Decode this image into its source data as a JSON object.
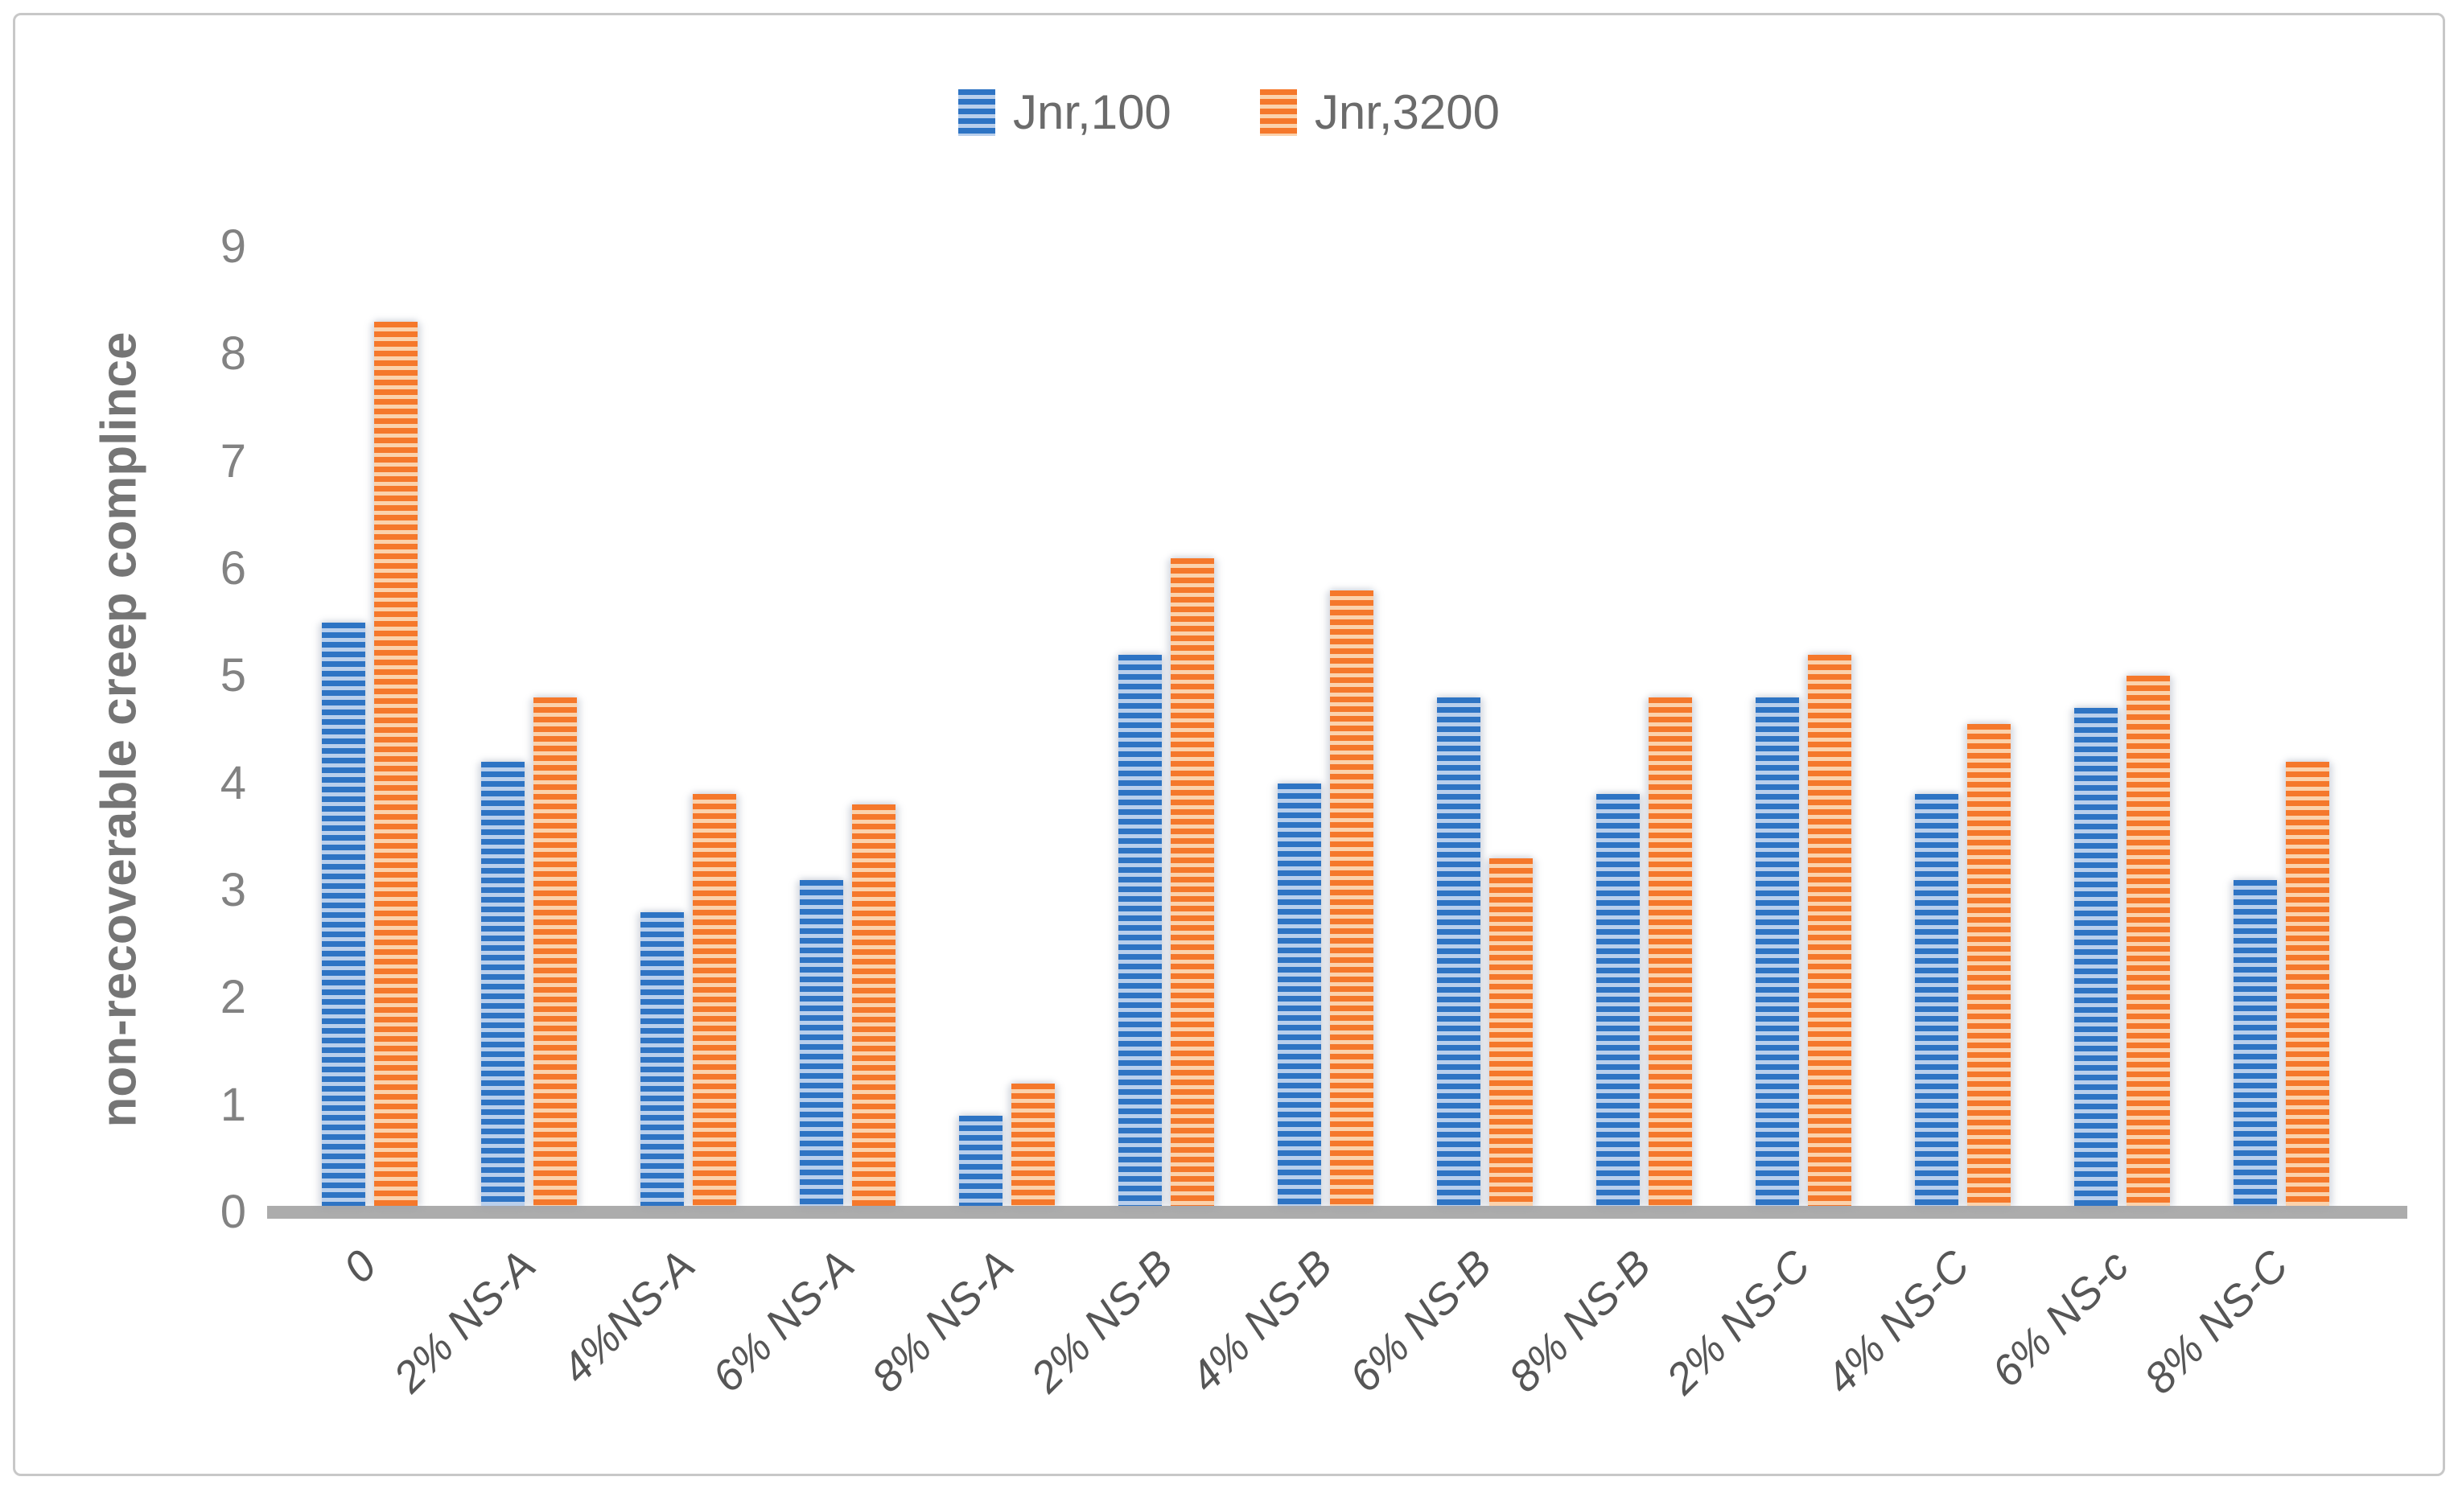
{
  "legend": {
    "items": [
      {
        "label": "Jnr,100"
      },
      {
        "label": "Jnr,3200"
      }
    ]
  },
  "y_axis": {
    "title": "non-recoverable creep complince",
    "min": 0,
    "max": 9,
    "step": 1
  },
  "chart_data": {
    "type": "bar",
    "title": "",
    "xlabel": "",
    "ylabel": "non-recoverable creep complince",
    "ylim": [
      0,
      9
    ],
    "grid": false,
    "legend_position": "top-center",
    "bar_pattern": "horizontal-stripes",
    "categories": [
      "0",
      "2% NS-A",
      "4%NS-A",
      "6% NS-A",
      "8% NS-A",
      "2% NS-B",
      "4% NS-B",
      "6% NS-B",
      "8% NS-B",
      "2% NS-C",
      "4% NS-C",
      "6% NS-c",
      "8% NS-C"
    ],
    "series": [
      {
        "name": "Jnr,100",
        "color": "#2E74C4",
        "color_light": "#B9CFEC",
        "values": [
          5.5,
          4.2,
          2.8,
          3.1,
          0.9,
          5.2,
          4.0,
          4.8,
          3.9,
          4.8,
          3.9,
          4.7,
          3.1
        ]
      },
      {
        "name": "Jnr,3200",
        "color": "#F5782B",
        "color_light": "#FBD2AC",
        "values": [
          8.3,
          4.8,
          3.9,
          3.8,
          1.2,
          6.1,
          5.8,
          3.3,
          4.8,
          5.2,
          4.55,
          5.0,
          4.2
        ]
      }
    ]
  },
  "colors": {
    "axis_line": "#ACACAC",
    "tick_text": "#828282",
    "x_label_text": "#565656",
    "legend_text": "#6B6B6B",
    "y_title_text": "#757575",
    "figure_border": "#C8C8C8"
  }
}
